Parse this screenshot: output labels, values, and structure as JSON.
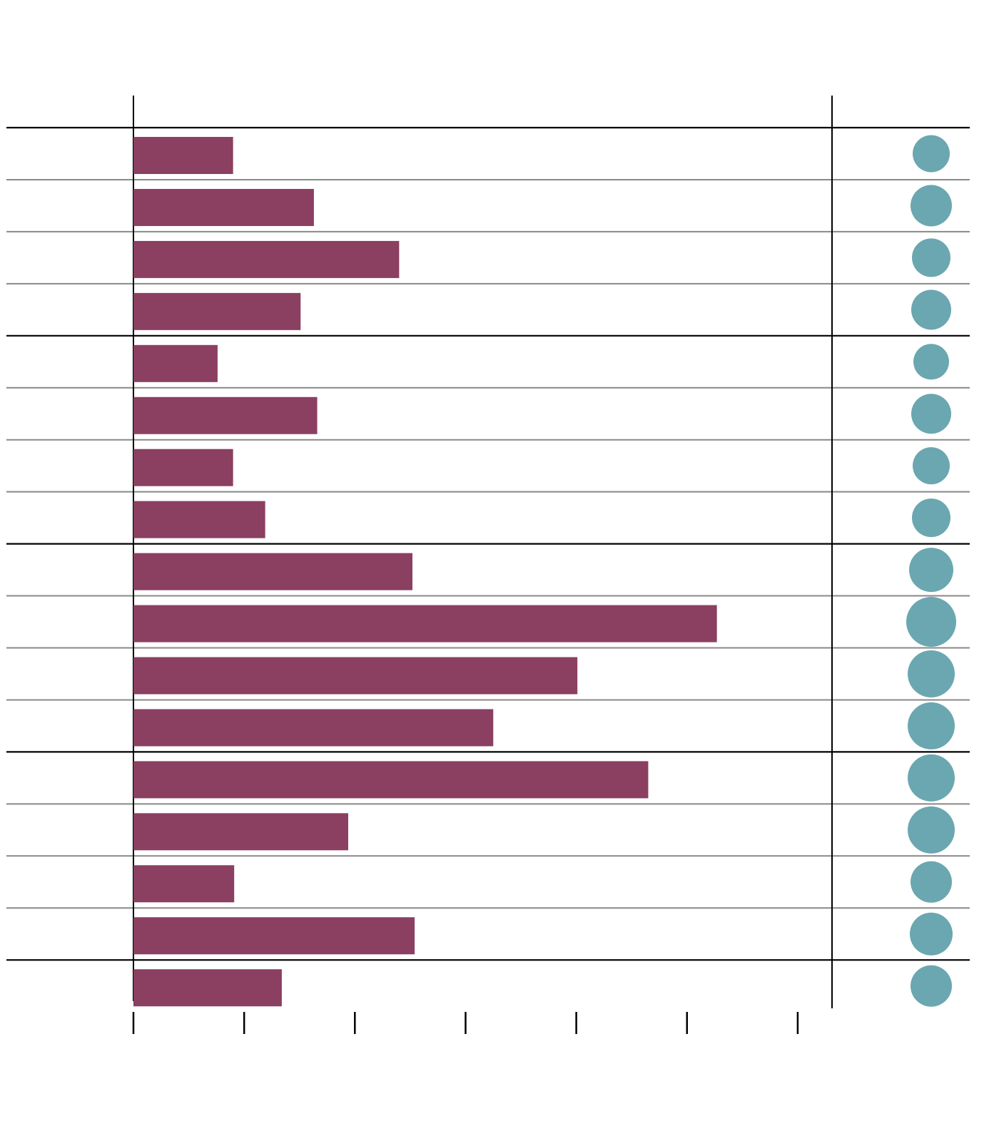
{
  "chart_data": {
    "type": "bar",
    "categories": [
      null,
      null,
      null,
      null,
      null,
      null,
      null,
      null,
      null,
      null,
      null,
      null,
      null,
      null,
      null,
      null,
      null
    ],
    "values": [
      0.9,
      1.63,
      2.4,
      1.51,
      0.76,
      1.66,
      0.9,
      1.19,
      2.52,
      5.27,
      4.01,
      3.25,
      4.65,
      1.94,
      0.91,
      2.54,
      1.34
    ],
    "color": "#8b3f61",
    "sizes": [
      26,
      29,
      27,
      28,
      25,
      28,
      26,
      27,
      31,
      35,
      33,
      33,
      33,
      33,
      29,
      30,
      29
    ],
    "size_color": "#6ba7b0",
    "xlim": [
      0,
      6.31
    ],
    "xticks": [
      0,
      1,
      2,
      3,
      4,
      5,
      6
    ]
  }
}
